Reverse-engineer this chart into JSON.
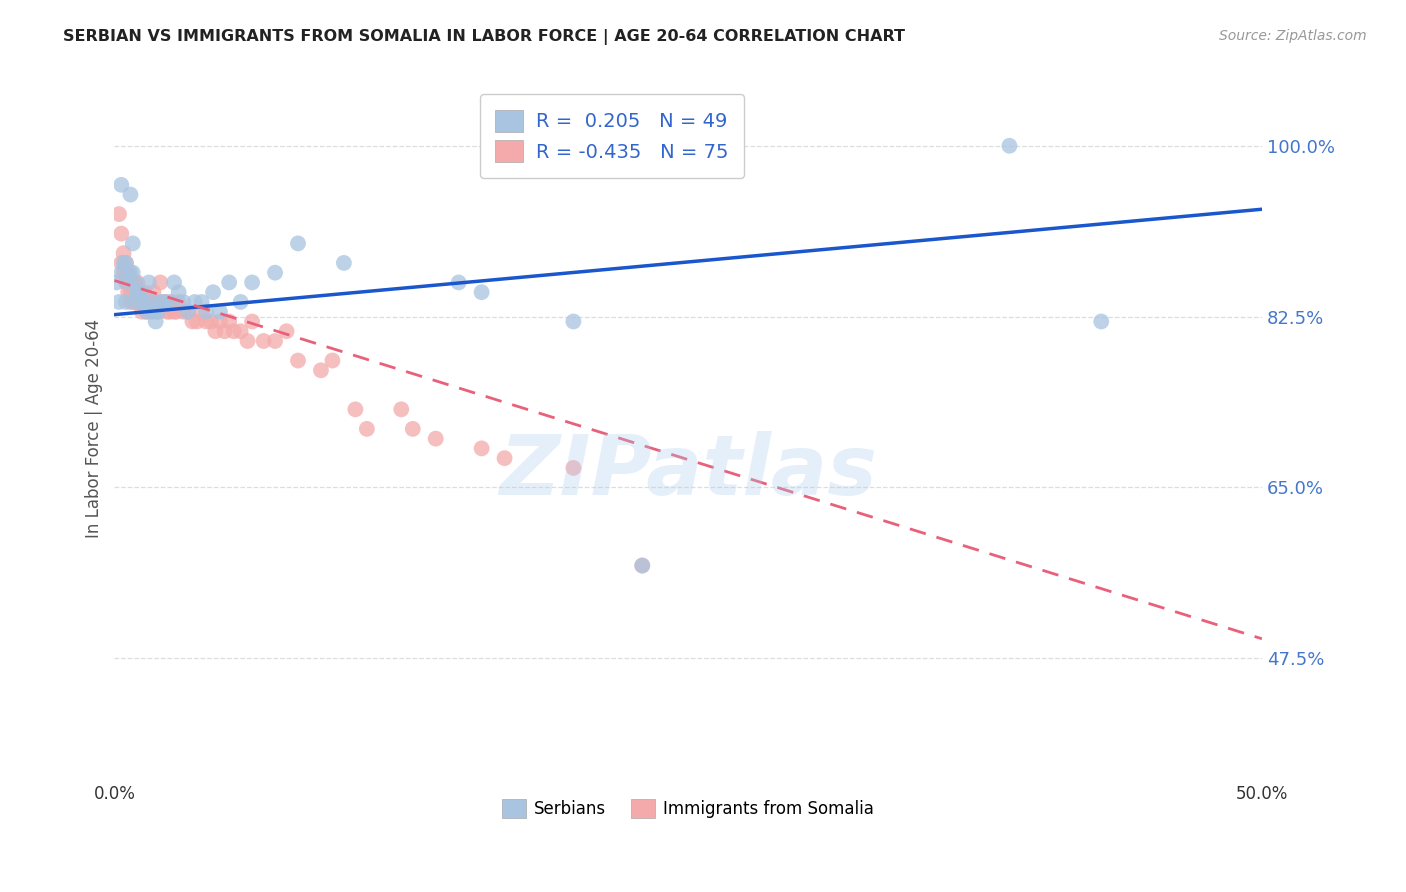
{
  "title": "SERBIAN VS IMMIGRANTS FROM SOMALIA IN LABOR FORCE | AGE 20-64 CORRELATION CHART",
  "source": "Source: ZipAtlas.com",
  "ylabel": "In Labor Force | Age 20-64",
  "xlim": [
    0.0,
    0.5
  ],
  "ylim": [
    0.35,
    1.07
  ],
  "yticks": [
    0.475,
    0.65,
    0.825,
    1.0
  ],
  "ytick_labels": [
    "47.5%",
    "65.0%",
    "82.5%",
    "100.0%"
  ],
  "xticks": [
    0.0,
    0.1,
    0.2,
    0.3,
    0.4,
    0.5
  ],
  "xtick_labels": [
    "0.0%",
    "",
    "",
    "",
    "",
    "50.0%"
  ],
  "legend_serbian_R": 0.205,
  "legend_serbian_N": 49,
  "legend_somalia_R": -0.435,
  "legend_somalia_N": 75,
  "blue_color": "#A8C4E0",
  "pink_color": "#F4AAAA",
  "trendline_blue": "#1A56CC",
  "trendline_pink": "#E8607A",
  "watermark": "ZIPatlas",
  "serbian_x": [
    0.001,
    0.002,
    0.003,
    0.003,
    0.004,
    0.005,
    0.005,
    0.006,
    0.007,
    0.007,
    0.008,
    0.008,
    0.009,
    0.009,
    0.01,
    0.01,
    0.011,
    0.012,
    0.013,
    0.014,
    0.015,
    0.016,
    0.017,
    0.018,
    0.019,
    0.02,
    0.022,
    0.024,
    0.026,
    0.028,
    0.03,
    0.032,
    0.035,
    0.038,
    0.04,
    0.043,
    0.046,
    0.05,
    0.055,
    0.06,
    0.07,
    0.08,
    0.1,
    0.15,
    0.16,
    0.2,
    0.23,
    0.39,
    0.43
  ],
  "serbian_y": [
    0.86,
    0.84,
    0.96,
    0.87,
    0.88,
    0.88,
    0.84,
    0.86,
    0.95,
    0.87,
    0.9,
    0.87,
    0.86,
    0.84,
    0.85,
    0.85,
    0.85,
    0.84,
    0.84,
    0.83,
    0.86,
    0.84,
    0.83,
    0.82,
    0.83,
    0.84,
    0.84,
    0.84,
    0.86,
    0.85,
    0.84,
    0.83,
    0.84,
    0.84,
    0.83,
    0.85,
    0.83,
    0.86,
    0.84,
    0.86,
    0.87,
    0.9,
    0.88,
    0.86,
    0.85,
    0.82,
    0.57,
    1.0,
    0.82
  ],
  "somalia_x": [
    0.002,
    0.003,
    0.003,
    0.004,
    0.004,
    0.005,
    0.005,
    0.005,
    0.006,
    0.006,
    0.006,
    0.007,
    0.007,
    0.007,
    0.008,
    0.008,
    0.008,
    0.009,
    0.009,
    0.009,
    0.01,
    0.01,
    0.01,
    0.011,
    0.011,
    0.012,
    0.012,
    0.013,
    0.013,
    0.014,
    0.014,
    0.015,
    0.016,
    0.017,
    0.018,
    0.019,
    0.02,
    0.021,
    0.022,
    0.023,
    0.024,
    0.025,
    0.026,
    0.027,
    0.028,
    0.03,
    0.032,
    0.034,
    0.036,
    0.038,
    0.04,
    0.042,
    0.044,
    0.046,
    0.048,
    0.05,
    0.052,
    0.055,
    0.058,
    0.06,
    0.065,
    0.07,
    0.075,
    0.08,
    0.09,
    0.095,
    0.105,
    0.11,
    0.125,
    0.13,
    0.14,
    0.16,
    0.17,
    0.2,
    0.23
  ],
  "somalia_y": [
    0.93,
    0.91,
    0.88,
    0.89,
    0.87,
    0.88,
    0.87,
    0.86,
    0.87,
    0.86,
    0.85,
    0.86,
    0.85,
    0.84,
    0.86,
    0.85,
    0.84,
    0.86,
    0.85,
    0.84,
    0.86,
    0.85,
    0.84,
    0.85,
    0.84,
    0.84,
    0.83,
    0.85,
    0.84,
    0.84,
    0.83,
    0.84,
    0.83,
    0.85,
    0.84,
    0.83,
    0.86,
    0.84,
    0.84,
    0.83,
    0.83,
    0.84,
    0.83,
    0.83,
    0.84,
    0.83,
    0.83,
    0.82,
    0.82,
    0.83,
    0.82,
    0.82,
    0.81,
    0.82,
    0.81,
    0.82,
    0.81,
    0.81,
    0.8,
    0.82,
    0.8,
    0.8,
    0.81,
    0.78,
    0.77,
    0.78,
    0.73,
    0.71,
    0.73,
    0.71,
    0.7,
    0.69,
    0.68,
    0.67,
    0.57
  ],
  "trendline_blue_x0": 0.0,
  "trendline_blue_y0": 0.827,
  "trendline_blue_x1": 0.5,
  "trendline_blue_y1": 0.935,
  "trendline_pink_x0": 0.0,
  "trendline_pink_y0": 0.862,
  "trendline_pink_x1": 0.5,
  "trendline_pink_y1": 0.495
}
